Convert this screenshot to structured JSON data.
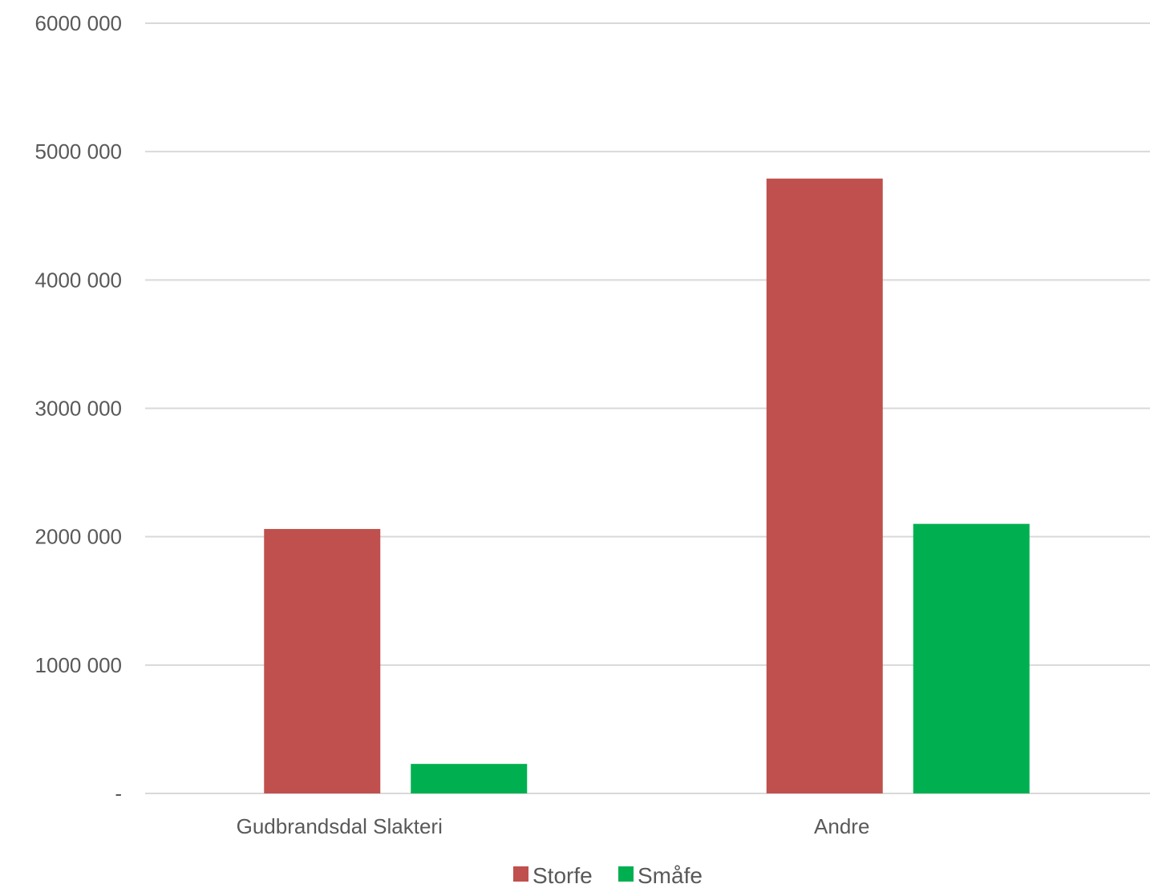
{
  "chart_data": {
    "type": "bar",
    "categories": [
      "Gudbrandsdal Slakteri",
      "Andre"
    ],
    "series": [
      {
        "name": "Storfe",
        "color": "#c0504d",
        "values": [
          2060000,
          4790000
        ]
      },
      {
        "name": "Småfe",
        "color": "#00b050",
        "values": [
          230000,
          2100000
        ]
      }
    ],
    "ylim": [
      0,
      6000000
    ],
    "yticks": [
      {
        "value": 0,
        "label": "-"
      },
      {
        "value": 1000000,
        "label": "1000 000"
      },
      {
        "value": 2000000,
        "label": "2000 000"
      },
      {
        "value": 3000000,
        "label": "3000 000"
      },
      {
        "value": 4000000,
        "label": "4000 000"
      },
      {
        "value": 5000000,
        "label": "5000 000"
      },
      {
        "value": 6000000,
        "label": "6000 000"
      }
    ],
    "grid": true,
    "legend": "bottom",
    "gridline_color": "#d9d9d9",
    "text_color": "#595959"
  }
}
